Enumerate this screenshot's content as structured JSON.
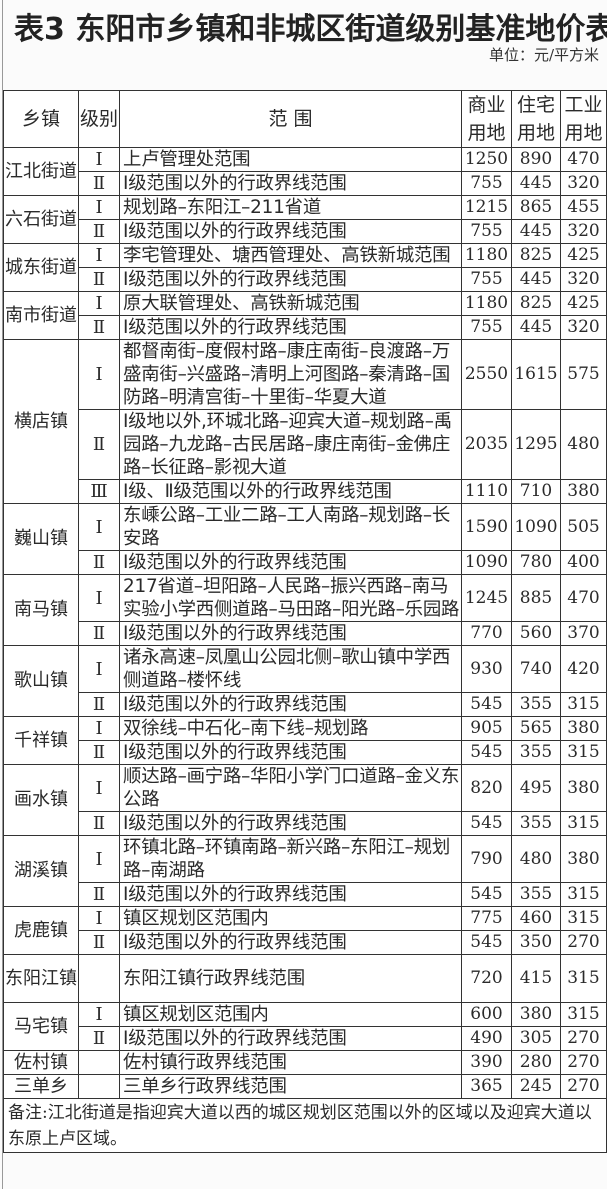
{
  "title": "表3  东阳市乡镇和非城区街道级别基准地价表",
  "unit": "单位：元/平方米",
  "headers": {
    "town": "乡镇",
    "level": "级别",
    "scope": "范 围",
    "commercial": "商业用地",
    "residential": "住宅用地",
    "industrial": "工业用地"
  },
  "towns": [
    {
      "name": "江北街道",
      "levels": [
        {
          "level": "Ⅰ",
          "scope": "上卢管理处范围",
          "commercial": "1250",
          "residential": "890",
          "industrial": "470"
        },
        {
          "level": "Ⅱ",
          "scope": "Ⅰ级范围以外的行政界线范围",
          "commercial": "755",
          "residential": "445",
          "industrial": "320"
        }
      ]
    },
    {
      "name": "六石街道",
      "levels": [
        {
          "level": "Ⅰ",
          "scope": "规划路–东阳江–211省道",
          "commercial": "1215",
          "residential": "865",
          "industrial": "455"
        },
        {
          "level": "Ⅱ",
          "scope": "Ⅰ级范围以外的行政界线范围",
          "commercial": "755",
          "residential": "445",
          "industrial": "320"
        }
      ]
    },
    {
      "name": "城东街道",
      "levels": [
        {
          "level": "Ⅰ",
          "scope": "李宅管理处、塘西管理处、高铁新城范围",
          "commercial": "1180",
          "residential": "825",
          "industrial": "425"
        },
        {
          "level": "Ⅱ",
          "scope": "Ⅰ级范围以外的行政界线范围",
          "commercial": "755",
          "residential": "445",
          "industrial": "320"
        }
      ]
    },
    {
      "name": "南市街道",
      "levels": [
        {
          "level": "Ⅰ",
          "scope": "原大联管理处、高铁新城范围",
          "commercial": "1180",
          "residential": "825",
          "industrial": "425"
        },
        {
          "level": "Ⅱ",
          "scope": "Ⅰ级范围以外的行政界线范围",
          "commercial": "755",
          "residential": "445",
          "industrial": "320"
        }
      ]
    },
    {
      "name": "横店镇",
      "levels": [
        {
          "level": "Ⅰ",
          "scope": "都督南街–度假村路–康庄南街–良渡路–万盛南街–兴盛路–清明上河图路–秦清路–国防路–明清宫街–十里街–华夏大道",
          "commercial": "2550",
          "residential": "1615",
          "industrial": "575"
        },
        {
          "level": "Ⅱ",
          "scope": "Ⅰ级地以外,环城北路–迎宾大道–规划路–禹园路–九龙路–古民居路–康庄南街–金佛庄路–长征路–影视大道",
          "commercial": "2035",
          "residential": "1295",
          "industrial": "480"
        },
        {
          "level": "Ⅲ",
          "scope": "Ⅰ级、Ⅱ级范围以外的行政界线范围",
          "commercial": "1110",
          "residential": "710",
          "industrial": "380"
        }
      ]
    },
    {
      "name": "巍山镇",
      "levels": [
        {
          "level": "Ⅰ",
          "scope": "东嵊公路–工业二路–工人南路–规划路–长安路",
          "commercial": "1590",
          "residential": "1090",
          "industrial": "505"
        },
        {
          "level": "Ⅱ",
          "scope": "Ⅰ级范围以外的行政界线范围",
          "commercial": "1090",
          "residential": "780",
          "industrial": "400"
        }
      ]
    },
    {
      "name": "南马镇",
      "levels": [
        {
          "level": "Ⅰ",
          "scope": "217省道–坦阳路–人民路–振兴西路–南马实验小学西侧道路–马田路–阳光路–乐园路",
          "commercial": "1245",
          "residential": "885",
          "industrial": "470"
        },
        {
          "level": "Ⅱ",
          "scope": "Ⅰ级范围以外的行政界线范围",
          "commercial": "770",
          "residential": "560",
          "industrial": "370"
        }
      ]
    },
    {
      "name": "歌山镇",
      "levels": [
        {
          "level": "Ⅰ",
          "scope": "诸永高速–凤凰山公园北侧–歌山镇中学西侧道路–楼怀线",
          "commercial": "930",
          "residential": "740",
          "industrial": "420"
        },
        {
          "level": "Ⅱ",
          "scope": "Ⅰ级范围以外的行政界线范围",
          "commercial": "545",
          "residential": "355",
          "industrial": "315"
        }
      ]
    },
    {
      "name": "千祥镇",
      "levels": [
        {
          "level": "Ⅰ",
          "scope": "双徐线–中石化–南下线–规划路",
          "commercial": "905",
          "residential": "565",
          "industrial": "380"
        },
        {
          "level": "Ⅱ",
          "scope": "Ⅰ级范围以外的行政界线范围",
          "commercial": "545",
          "residential": "355",
          "industrial": "315"
        }
      ]
    },
    {
      "name": "画水镇",
      "levels": [
        {
          "level": "Ⅰ",
          "scope": "顺达路–画宁路–华阳小学门口道路–金义东公路",
          "commercial": "820",
          "residential": "495",
          "industrial": "380"
        },
        {
          "level": "Ⅱ",
          "scope": "Ⅰ级范围以外的行政界线范围",
          "commercial": "545",
          "residential": "355",
          "industrial": "315"
        }
      ]
    },
    {
      "name": "湖溪镇",
      "levels": [
        {
          "level": "Ⅰ",
          "scope": "环镇北路–环镇南路–新兴路–东阳江–规划路–南湖路",
          "commercial": "790",
          "residential": "480",
          "industrial": "380"
        },
        {
          "level": "Ⅱ",
          "scope": "Ⅰ级范围以外的行政界线范围",
          "commercial": "545",
          "residential": "355",
          "industrial": "315"
        }
      ]
    },
    {
      "name": "虎鹿镇",
      "levels": [
        {
          "level": "Ⅰ",
          "scope": "镇区规划区范围内",
          "commercial": "775",
          "residential": "460",
          "industrial": "315"
        },
        {
          "level": "Ⅱ",
          "scope": "Ⅰ级范围以外的行政界线范围",
          "commercial": "545",
          "residential": "350",
          "industrial": "270"
        }
      ]
    },
    {
      "name": "东阳江镇",
      "tall": true,
      "levels": [
        {
          "level": "",
          "scope": "东阳江镇行政界线范围",
          "commercial": "720",
          "residential": "415",
          "industrial": "315"
        }
      ]
    },
    {
      "name": "马宅镇",
      "levels": [
        {
          "level": "Ⅰ",
          "scope": "镇区规划区范围内",
          "commercial": "600",
          "residential": "380",
          "industrial": "315"
        },
        {
          "level": "Ⅱ",
          "scope": "Ⅰ级范围以外的行政界线范围",
          "commercial": "490",
          "residential": "305",
          "industrial": "270"
        }
      ]
    },
    {
      "name": "佐村镇",
      "levels": [
        {
          "level": "",
          "scope": "佐村镇行政界线范围",
          "commercial": "390",
          "residential": "280",
          "industrial": "270"
        }
      ]
    },
    {
      "name": "三单乡",
      "levels": [
        {
          "level": "",
          "scope": "三单乡行政界线范围",
          "commercial": "365",
          "residential": "245",
          "industrial": "270"
        }
      ]
    }
  ],
  "note": "备注:江北街道是指迎宾大道以西的城区规划区范围以外的区域以及迎宾大道以东原上卢区域。"
}
